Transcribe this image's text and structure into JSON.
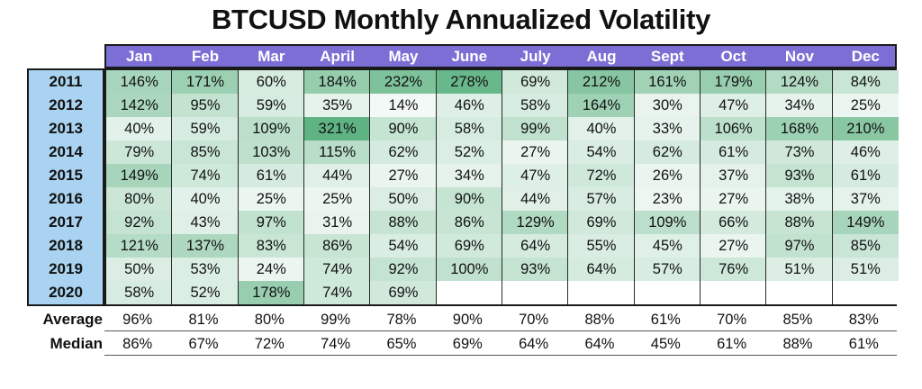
{
  "chart_data": {
    "type": "table",
    "title": "BTCUSD Monthly Annualized Volatility",
    "columns": [
      "Jan",
      "Feb",
      "Mar",
      "April",
      "May",
      "June",
      "July",
      "Aug",
      "Sept",
      "Oct",
      "Nov",
      "Dec"
    ],
    "rows": [
      {
        "year": "2011",
        "values": [
          146,
          171,
          60,
          184,
          232,
          278,
          69,
          212,
          161,
          179,
          124,
          84
        ]
      },
      {
        "year": "2012",
        "values": [
          142,
          95,
          59,
          35,
          14,
          46,
          58,
          164,
          30,
          47,
          34,
          25
        ]
      },
      {
        "year": "2013",
        "values": [
          40,
          59,
          109,
          321,
          90,
          58,
          99,
          40,
          33,
          106,
          168,
          210
        ]
      },
      {
        "year": "2014",
        "values": [
          79,
          85,
          103,
          115,
          62,
          52,
          27,
          54,
          62,
          61,
          73,
          46
        ]
      },
      {
        "year": "2015",
        "values": [
          149,
          74,
          61,
          44,
          27,
          34,
          47,
          72,
          26,
          37,
          93,
          61
        ]
      },
      {
        "year": "2016",
        "values": [
          80,
          40,
          25,
          25,
          50,
          90,
          44,
          57,
          23,
          27,
          38,
          37
        ]
      },
      {
        "year": "2017",
        "values": [
          92,
          43,
          97,
          31,
          88,
          86,
          129,
          69,
          109,
          66,
          88,
          149
        ]
      },
      {
        "year": "2018",
        "values": [
          121,
          137,
          83,
          86,
          54,
          69,
          64,
          55,
          45,
          27,
          97,
          85
        ]
      },
      {
        "year": "2019",
        "values": [
          50,
          53,
          24,
          74,
          92,
          100,
          93,
          64,
          57,
          76,
          51,
          51
        ]
      },
      {
        "year": "2020",
        "values": [
          58,
          52,
          178,
          74,
          69,
          null,
          null,
          null,
          null,
          null,
          null,
          null
        ]
      }
    ],
    "summary": [
      {
        "label": "Average",
        "values": [
          96,
          81,
          80,
          99,
          78,
          90,
          70,
          88,
          61,
          70,
          85,
          83
        ]
      },
      {
        "label": "Median",
        "values": [
          86,
          67,
          72,
          74,
          65,
          69,
          64,
          64,
          45,
          61,
          88,
          61
        ]
      }
    ],
    "unit": "%",
    "colors": {
      "header": "#7b6fd6",
      "year_column": "#a9d3f0",
      "scale_low": "#ffffff",
      "scale_high": "#5fb383"
    }
  }
}
